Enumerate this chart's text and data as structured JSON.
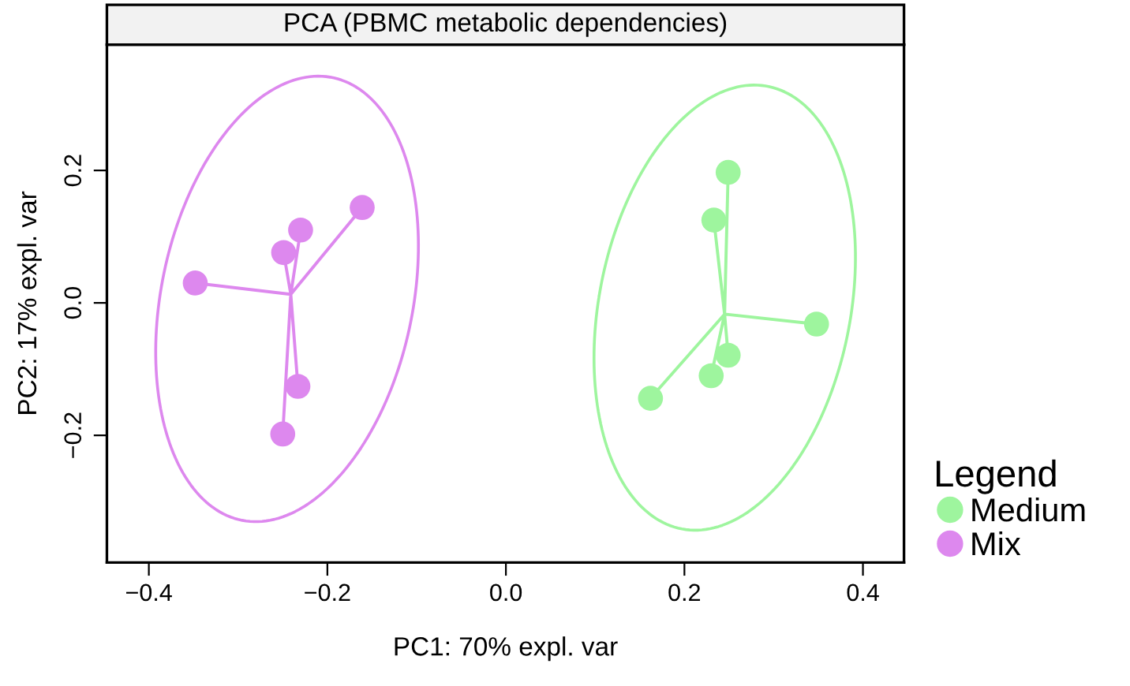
{
  "chart_data": {
    "type": "scatter",
    "title": "PCA (PBMC metabolic dependencies)",
    "xlabel": "PC1: 70% expl. var",
    "ylabel": "PC2: 17% expl. var",
    "legend_title": "Legend",
    "legend": "right",
    "grid": false,
    "marker": "circle",
    "xlim": [
      -0.447,
      0.446
    ],
    "ylim": [
      -0.392,
      0.39
    ],
    "xticks": [
      {
        "value": -0.4,
        "label": "−0.4"
      },
      {
        "value": -0.2,
        "label": "−0.2"
      },
      {
        "value": 0,
        "label": "0.0"
      },
      0.2,
      0.4
    ],
    "yticks": [
      {
        "value": -0.2,
        "label": "−0.2"
      },
      {
        "value": 0,
        "label": "0.0"
      },
      0.2
    ],
    "series": [
      {
        "type": "line",
        "marker": "none",
        "color": "#9ef59e",
        "x": [
          0.245,
          0.249,
          0.245,
          0.233,
          0.245,
          0.348,
          0.245,
          0.249,
          0.245,
          0.23,
          0.245,
          0.162
        ],
        "values": [
          -0.017,
          0.197,
          -0.017,
          0.125,
          -0.017,
          -0.032,
          -0.017,
          -0.079,
          -0.017,
          -0.11,
          -0.017,
          -0.144
        ]
      },
      {
        "type": "line",
        "marker": "none",
        "color": "#dd88ee",
        "x": [
          -0.241,
          -0.348,
          -0.241,
          -0.249,
          -0.241,
          -0.23,
          -0.241,
          -0.161,
          -0.241,
          -0.233,
          -0.241,
          -0.25
        ],
        "values": [
          0.013,
          0.03,
          0.013,
          0.076,
          0.013,
          0.11,
          0.013,
          0.144,
          0.013,
          -0.126,
          0.013,
          -0.198
        ]
      },
      {
        "name": "Medium",
        "color": "#9ef59e",
        "x": [
          0.249,
          0.233,
          0.348,
          0.249,
          0.23,
          0.162
        ],
        "values": [
          0.197,
          0.125,
          -0.032,
          -0.079,
          -0.11,
          -0.144
        ]
      },
      {
        "name": "Mix",
        "color": "#dd88ee",
        "x": [
          -0.348,
          -0.249,
          -0.23,
          -0.161,
          -0.233,
          -0.25
        ],
        "values": [
          0.03,
          0.076,
          0.11,
          0.144,
          -0.126,
          -0.198
        ]
      }
    ]
  }
}
